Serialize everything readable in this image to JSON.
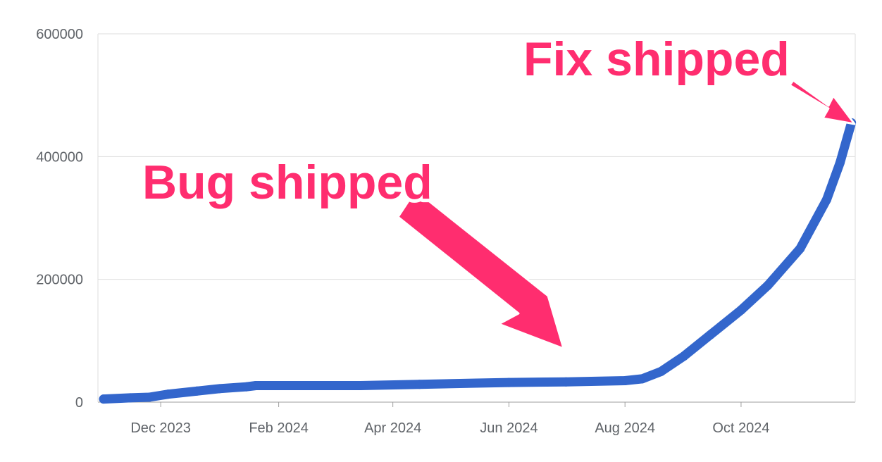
{
  "chart_data": {
    "type": "line",
    "title": "",
    "xlabel": "",
    "ylabel": "",
    "ylim": [
      0,
      600000
    ],
    "yticks": [
      0,
      200000,
      400000,
      600000
    ],
    "xlim": [
      "2023-10-29",
      "2024-11-30"
    ],
    "xticks": [
      {
        "date": "2023-12-01",
        "label": "Dec 2023"
      },
      {
        "date": "2024-02-01",
        "label": "Feb 2024"
      },
      {
        "date": "2024-04-01",
        "label": "Apr 2024"
      },
      {
        "date": "2024-06-01",
        "label": "Jun 2024"
      },
      {
        "date": "2024-08-01",
        "label": "Aug 2024"
      },
      {
        "date": "2024-10-01",
        "label": "Oct 2024"
      }
    ],
    "grid": true,
    "series_color": "#3366cc",
    "series": [
      {
        "points": [
          {
            "x": "2023-11-01",
            "y": 5000
          },
          {
            "x": "2023-11-15",
            "y": 7000
          },
          {
            "x": "2023-11-25",
            "y": 8000
          },
          {
            "x": "2023-12-05",
            "y": 13000
          },
          {
            "x": "2023-12-20",
            "y": 18000
          },
          {
            "x": "2024-01-01",
            "y": 22000
          },
          {
            "x": "2024-01-15",
            "y": 25000
          },
          {
            "x": "2024-01-20",
            "y": 27000
          },
          {
            "x": "2024-02-15",
            "y": 27000
          },
          {
            "x": "2024-03-15",
            "y": 27000
          },
          {
            "x": "2024-04-15",
            "y": 29000
          },
          {
            "x": "2024-05-15",
            "y": 31000
          },
          {
            "x": "2024-06-01",
            "y": 32000
          },
          {
            "x": "2024-07-01",
            "y": 33000
          },
          {
            "x": "2024-08-01",
            "y": 35000
          },
          {
            "x": "2024-08-10",
            "y": 38000
          },
          {
            "x": "2024-08-20",
            "y": 50000
          },
          {
            "x": "2024-09-01",
            "y": 75000
          },
          {
            "x": "2024-09-15",
            "y": 110000
          },
          {
            "x": "2024-10-01",
            "y": 150000
          },
          {
            "x": "2024-10-15",
            "y": 190000
          },
          {
            "x": "2024-11-01",
            "y": 250000
          },
          {
            "x": "2024-11-15",
            "y": 330000
          },
          {
            "x": "2024-11-22",
            "y": 390000
          },
          {
            "x": "2024-11-28",
            "y": 455000
          }
        ]
      }
    ],
    "annotations": [
      {
        "text": "Bug shipped",
        "color": "#ff2d6f",
        "points_to": {
          "x": "2024-07-15",
          "y": 33000
        }
      },
      {
        "text": "Fix shipped",
        "color": "#ff2d6f",
        "points_to": {
          "x": "2024-11-28",
          "y": 455000
        }
      }
    ]
  }
}
